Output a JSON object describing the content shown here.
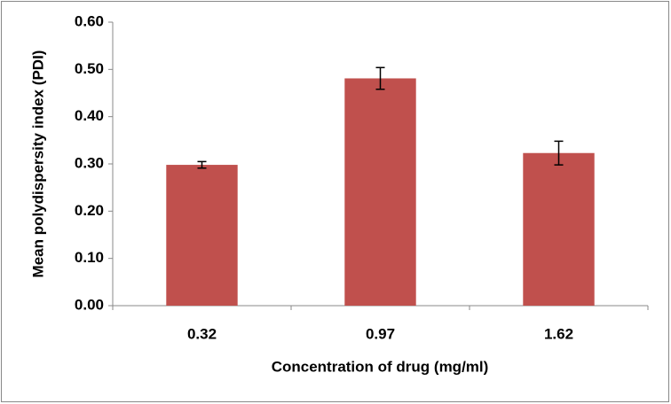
{
  "chart_data": {
    "type": "bar",
    "x_label": "Concentration of drug (mg/ml)",
    "y_label": "Mean polydispersity index (PDI)",
    "categories": [
      "0.32",
      "0.97",
      "1.62"
    ],
    "values": [
      0.298,
      0.481,
      0.323
    ],
    "errors": [
      0.007,
      0.023,
      0.025
    ],
    "color": "#c0504d",
    "ylim": [
      0,
      0.6
    ],
    "yticks": [
      {
        "value": 0,
        "label": "0.00"
      },
      {
        "value": 0.1,
        "label": "0.10"
      },
      {
        "value": 0.2,
        "label": "0.20"
      },
      {
        "value": 0.3,
        "label": "0.30"
      },
      {
        "value": 0.4,
        "label": "0.40"
      },
      {
        "value": 0.5,
        "label": "0.50"
      },
      {
        "value": 0.6,
        "label": "0.60"
      }
    ],
    "grid": false
  }
}
